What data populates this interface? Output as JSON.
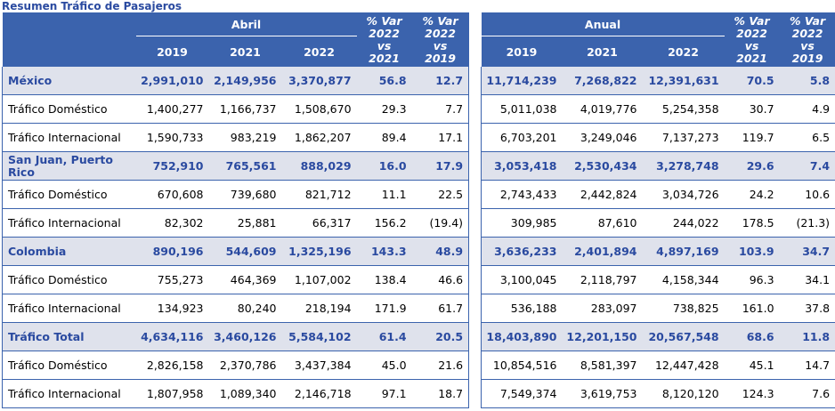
{
  "title": "Resumen Tráfico de Pasajeros",
  "abril": {
    "group_label": "Abril",
    "years": [
      "2019",
      "2021",
      "2022"
    ],
    "var_label_1": [
      "% Var",
      "2022",
      "vs",
      "2021"
    ],
    "var_label_2": [
      "% Var",
      "2022",
      "vs",
      "2019"
    ]
  },
  "anual": {
    "group_label": "Anual",
    "years": [
      "2019",
      "2021",
      "2022"
    ],
    "var_label_1": [
      "% Var",
      "2022",
      "vs",
      "2021"
    ],
    "var_label_2": [
      "% Var",
      "2022",
      "vs",
      "2019"
    ]
  },
  "rows": [
    {
      "label": "México",
      "section": true,
      "abril": [
        "2,991,010",
        "2,149,956",
        "3,370,877",
        "56.8",
        "12.7"
      ],
      "anual": [
        "11,714,239",
        "7,268,822",
        "12,391,631",
        "70.5",
        "5.8"
      ]
    },
    {
      "label": "Tráfico Doméstico",
      "section": false,
      "abril": [
        "1,400,277",
        "1,166,737",
        "1,508,670",
        "29.3",
        "7.7"
      ],
      "anual": [
        "5,011,038",
        "4,019,776",
        "5,254,358",
        "30.7",
        "4.9"
      ]
    },
    {
      "label": "Tráfico Internacional",
      "section": false,
      "abril": [
        "1,590,733",
        "983,219",
        "1,862,207",
        "89.4",
        "17.1"
      ],
      "anual": [
        "6,703,201",
        "3,249,046",
        "7,137,273",
        "119.7",
        "6.5"
      ]
    },
    {
      "label": "San Juan, Puerto Rico",
      "section": true,
      "abril": [
        "752,910",
        "765,561",
        "888,029",
        "16.0",
        "17.9"
      ],
      "anual": [
        "3,053,418",
        "2,530,434",
        "3,278,748",
        "29.6",
        "7.4"
      ]
    },
    {
      "label": "Tráfico Doméstico",
      "section": false,
      "abril": [
        "670,608",
        "739,680",
        "821,712",
        "11.1",
        "22.5"
      ],
      "anual": [
        "2,743,433",
        "2,442,824",
        "3,034,726",
        "24.2",
        "10.6"
      ]
    },
    {
      "label": "Tráfico Internacional",
      "section": false,
      "abril": [
        "82,302",
        "25,881",
        "66,317",
        "156.2",
        "(19.4)"
      ],
      "anual": [
        "309,985",
        "87,610",
        "244,022",
        "178.5",
        "(21.3)"
      ]
    },
    {
      "label": "Colombia",
      "section": true,
      "abril": [
        "890,196",
        "544,609",
        "1,325,196",
        "143.3",
        "48.9"
      ],
      "anual": [
        "3,636,233",
        "2,401,894",
        "4,897,169",
        "103.9",
        "34.7"
      ]
    },
    {
      "label": "Tráfico Doméstico",
      "section": false,
      "abril": [
        "755,273",
        "464,369",
        "1,107,002",
        "138.4",
        "46.6"
      ],
      "anual": [
        "3,100,045",
        "2,118,797",
        "4,158,344",
        "96.3",
        "34.1"
      ]
    },
    {
      "label": "Tráfico Internacional",
      "section": false,
      "abril": [
        "134,923",
        "80,240",
        "218,194",
        "171.9",
        "61.7"
      ],
      "anual": [
        "536,188",
        "283,097",
        "738,825",
        "161.0",
        "37.8"
      ]
    },
    {
      "label": "Tráfico Total",
      "section": true,
      "abril": [
        "4,634,116",
        "3,460,126",
        "5,584,102",
        "61.4",
        "20.5"
      ],
      "anual": [
        "18,403,890",
        "12,201,150",
        "20,567,548",
        "68.6",
        "11.8"
      ]
    },
    {
      "label": "Tráfico Doméstico",
      "section": false,
      "abril": [
        "2,826,158",
        "2,370,786",
        "3,437,384",
        "45.0",
        "21.6"
      ],
      "anual": [
        "10,854,516",
        "8,581,397",
        "12,447,428",
        "45.1",
        "14.7"
      ]
    },
    {
      "label": "Tráfico Internacional",
      "section": false,
      "abril": [
        "1,807,958",
        "1,089,340",
        "2,146,718",
        "97.1",
        "18.7"
      ],
      "anual": [
        "7,549,374",
        "3,619,753",
        "8,120,120",
        "124.3",
        "7.6"
      ]
    }
  ],
  "colors": {
    "header_bg": "#3b63ad",
    "section_bg": "#dfe2ec",
    "section_text": "#2a4aa0",
    "rule": "#3b63ad"
  }
}
